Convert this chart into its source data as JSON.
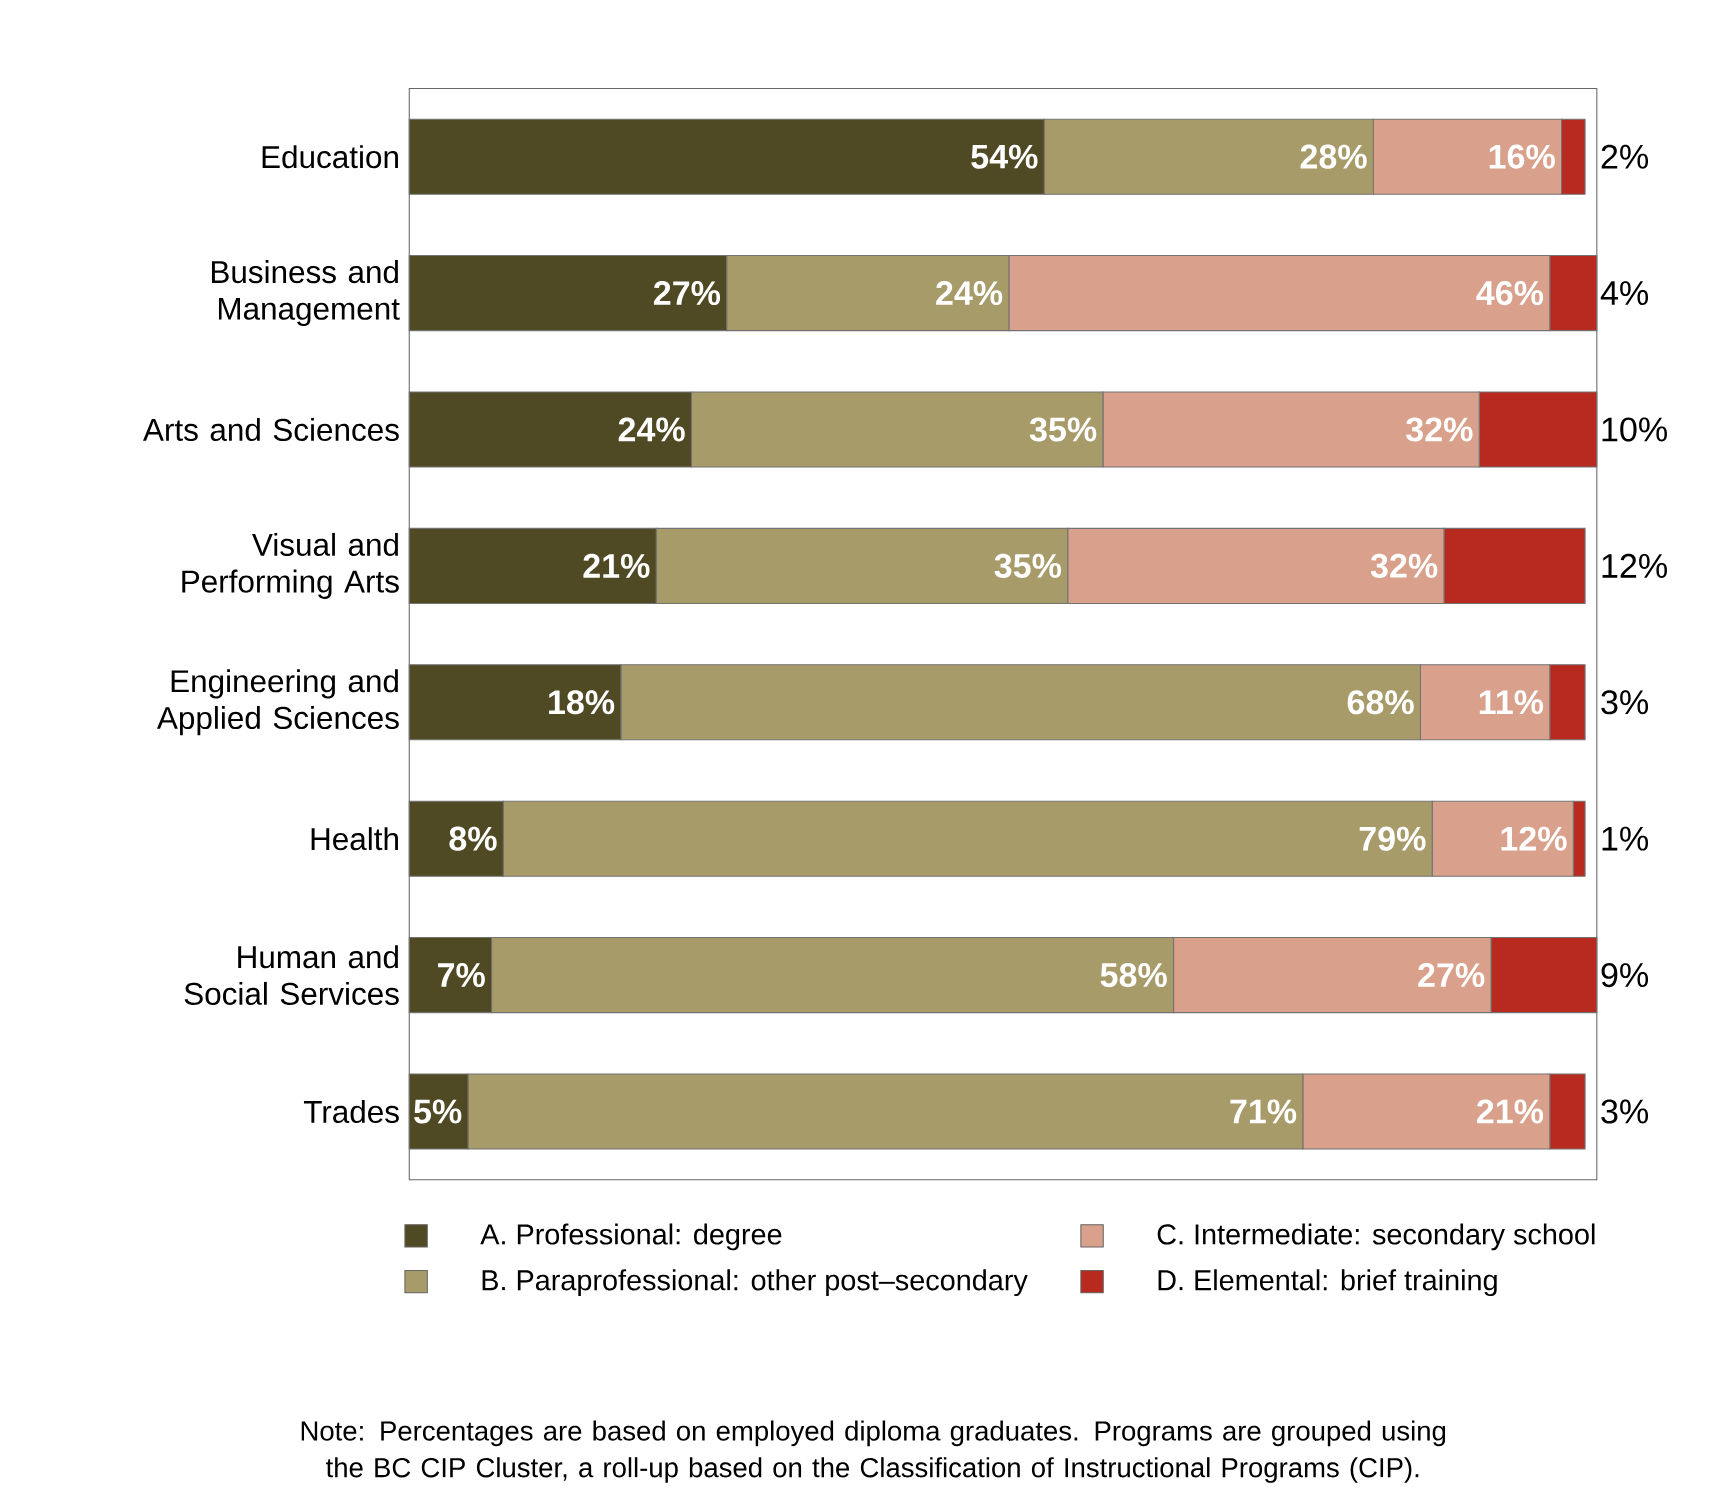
{
  "chart_data": {
    "type": "bar",
    "orientation": "horizontal",
    "stacked": true,
    "legend": "bottom",
    "categories": [
      "Education",
      "Business and Management",
      "Arts and Sciences",
      "Visual and Performing Arts",
      "Engineering and Applied Sciences",
      "Health",
      "Human and Social Services",
      "Trades"
    ],
    "series": [
      {
        "name": "A. Professional: degree",
        "color": "#4f4a24",
        "values": [
          54,
          27,
          24,
          21,
          18,
          8,
          7,
          5
        ],
        "value_labels": [
          "54%",
          "27%",
          "24%",
          "21%",
          "18%",
          "8%",
          "7%",
          "5%"
        ]
      },
      {
        "name": "B. Paraprofessional: other post–secondary",
        "color": "#a89b6a",
        "values": [
          28,
          24,
          35,
          35,
          68,
          79,
          58,
          71
        ],
        "value_labels": [
          "28%",
          "24%",
          "35%",
          "35%",
          "68%",
          "79%",
          "58%",
          "71%"
        ]
      },
      {
        "name": "C. Intermediate: secondary school",
        "color": "#d9a08c",
        "values": [
          16,
          46,
          32,
          32,
          11,
          12,
          27,
          21
        ],
        "value_labels": [
          "16%",
          "46%",
          "32%",
          "32%",
          "11%",
          "12%",
          "27%",
          "21%"
        ]
      },
      {
        "name": "D. Elemental: brief training",
        "color": "#b8291f",
        "values": [
          2,
          4,
          10,
          12,
          3,
          1,
          9,
          3
        ],
        "value_labels": [
          "2%",
          "4%",
          "10%",
          "12%",
          "3%",
          "1%",
          "9%",
          "3%"
        ]
      }
    ],
    "annotations": [
      "Note: Percentages are based on employed diploma graduates. Programs are grouped using the BC CIP Cluster, a roll-up based on the Classification of Instructional Programs (CIP)."
    ]
  }
}
